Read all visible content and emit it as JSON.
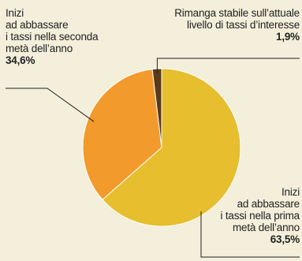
{
  "colors": {
    "background": "#F3EFDB",
    "slice_large": "#E6BE2E",
    "slice_medium": "#F39A2C",
    "slice_small": "#5A3A1A",
    "edge": "#FFFFFF",
    "leader": "#222222"
  },
  "chart_data": {
    "type": "pie",
    "slices": [
      {
        "lines": [
          "Inizi",
          "ad abbassare",
          "i tassi nella prima",
          "metà dell’anno"
        ],
        "value": 63.5,
        "value_label": "63,5%",
        "color": "#E6BE2E"
      },
      {
        "lines": [
          "Inizi",
          "ad abbassare",
          "i tassi nella seconda",
          "metà dell’anno"
        ],
        "value": 34.6,
        "value_label": "34,6%",
        "color": "#F39A2C"
      },
      {
        "lines": [
          "Rimanga stabile sull’attuale",
          "livello di tassi d’interesse"
        ],
        "value": 1.9,
        "value_label": "1,9%",
        "color": "#5A3A1A"
      }
    ]
  }
}
